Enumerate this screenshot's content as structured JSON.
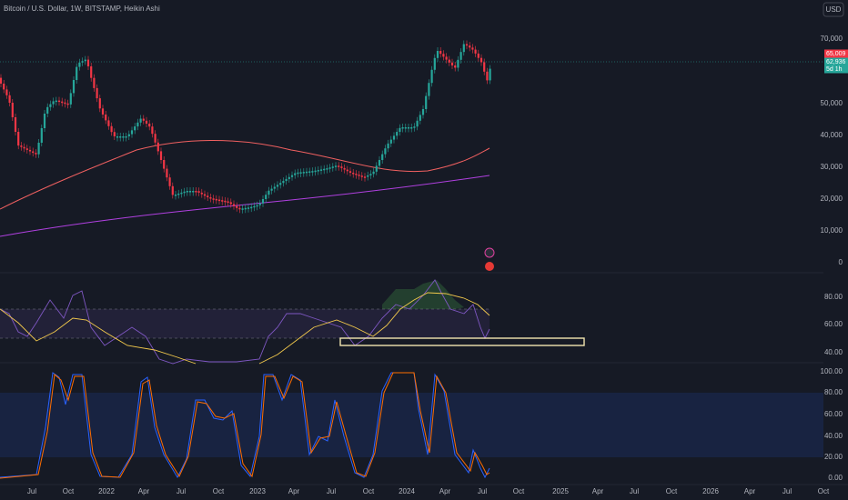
{
  "header": {
    "title": "Bitcoin / U.S. Dollar, 1W, BITSTAMP, Heikin Ashi",
    "currency": "USD"
  },
  "price_axis": {
    "labels": [
      "70,000",
      "50,000",
      "40,000",
      "30,000",
      "20,000",
      "10,000",
      "0"
    ]
  },
  "price_tags": [
    "65,009",
    "62,936",
    "5d 1h"
  ],
  "rsi_axis": {
    "labels": [
      "80.00",
      "60.00",
      "40.00"
    ]
  },
  "stoch_axis": {
    "labels": [
      "100.00",
      "80.00",
      "60.00",
      "40.00",
      "20.00",
      "0.00"
    ]
  },
  "time_axis": {
    "labels": [
      "Jul",
      "Oct",
      "2022",
      "Apr",
      "Jul",
      "Oct",
      "2023",
      "Apr",
      "Jul",
      "Oct",
      "2024",
      "Apr",
      "Jul",
      "Oct",
      "2025",
      "Apr",
      "Jul",
      "Oct",
      "2026",
      "Apr",
      "Jul",
      "Oct"
    ]
  }
}
